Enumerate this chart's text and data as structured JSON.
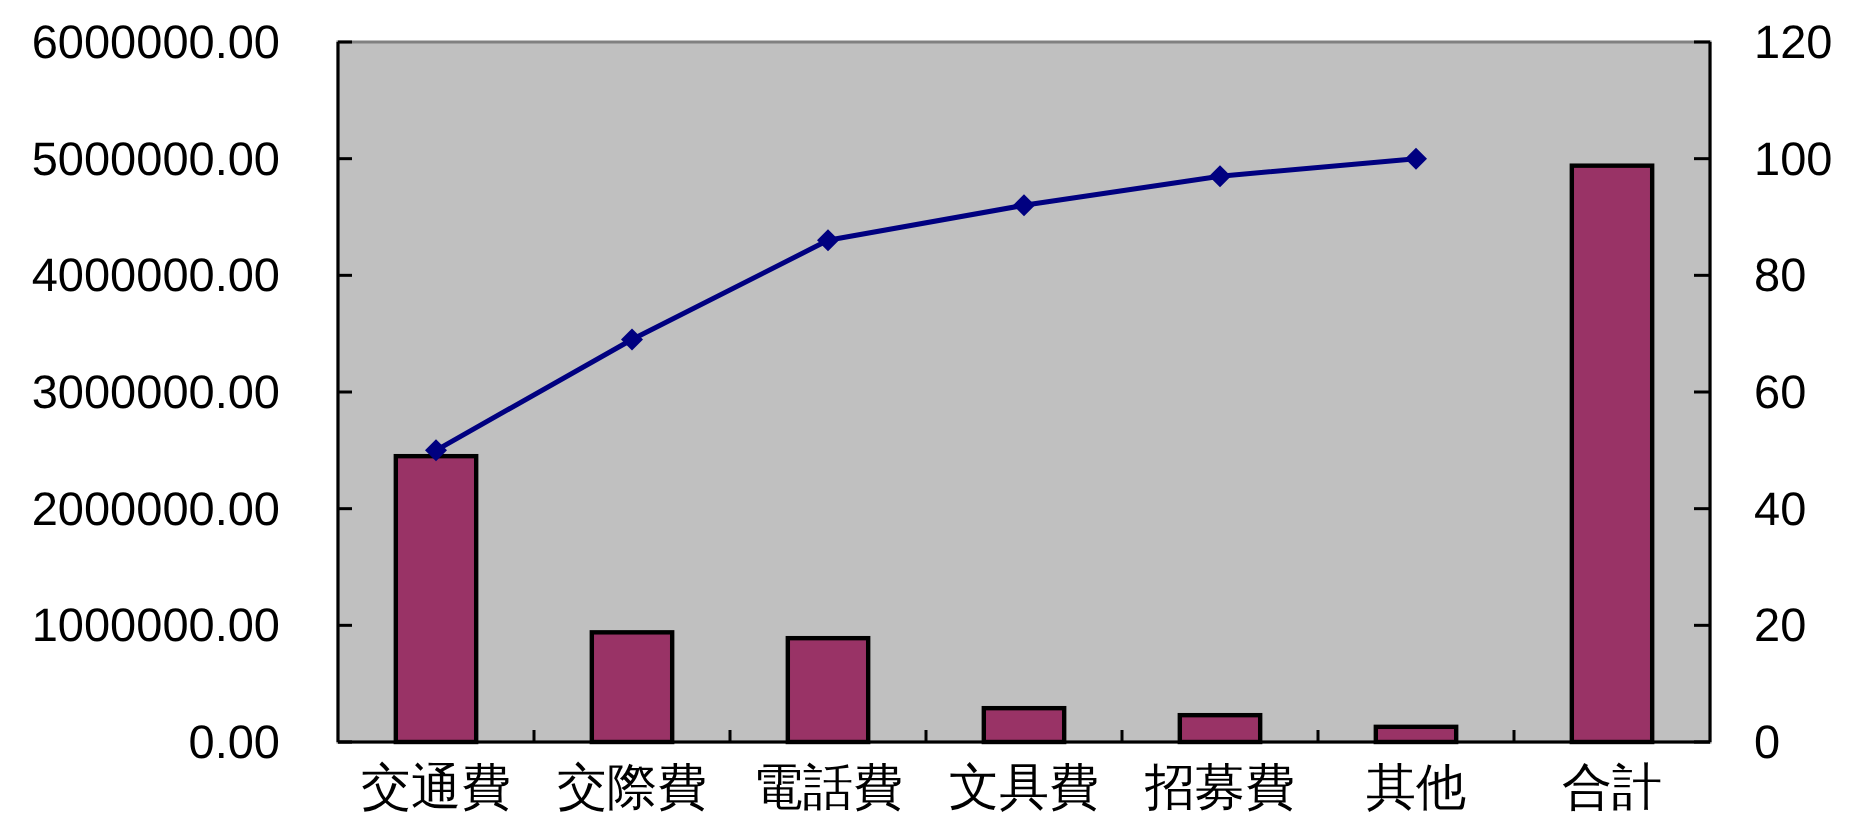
{
  "chart_data": {
    "type": "bar",
    "categories": [
      "交通費",
      "交際費",
      "電話費",
      "文具費",
      "招募費",
      "其他",
      "合計"
    ],
    "series": [
      {
        "color": "#993366",
        "values": [
          2450000,
          940000,
          890000,
          290000,
          230000,
          130000,
          4940000
        ]
      },
      {
        "type": "line",
        "axis": "y2",
        "color": "#000080",
        "marker": "diamond",
        "line_style": "solid",
        "values": [
          50,
          69,
          86,
          92,
          97,
          100,
          null
        ]
      }
    ],
    "ylim": [
      0,
      6000000
    ],
    "yticks": [
      {
        "value": 0,
        "label": "0.00"
      },
      {
        "value": 1000000,
        "label": "1000000.00"
      },
      {
        "value": 2000000,
        "label": "2000000.00"
      },
      {
        "value": 3000000,
        "label": "3000000.00"
      },
      {
        "value": 4000000,
        "label": "4000000.00"
      },
      {
        "value": 5000000,
        "label": "5000000.00"
      },
      {
        "value": 6000000,
        "label": "6000000.00"
      }
    ],
    "y2lim": [
      0,
      120
    ],
    "y2ticks": [
      0,
      20,
      40,
      60,
      80,
      100,
      120
    ],
    "grid": false,
    "legend": false
  }
}
